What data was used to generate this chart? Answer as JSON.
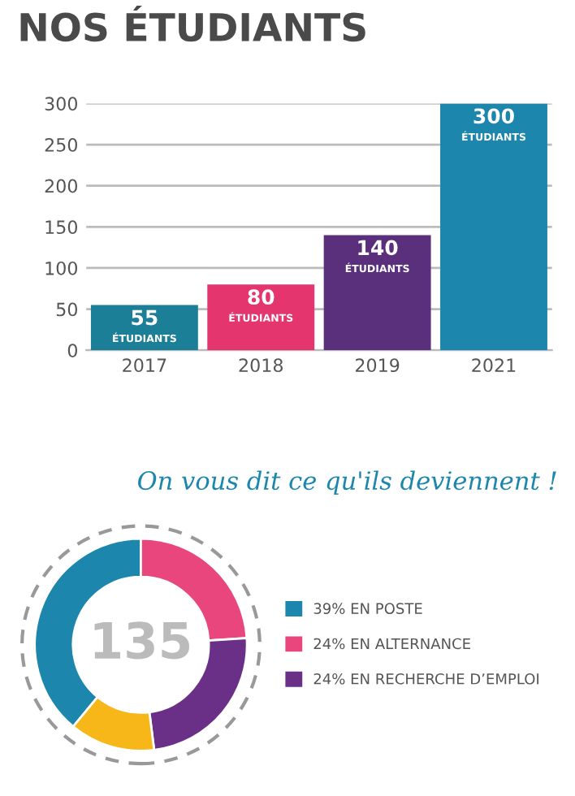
{
  "chart_data": [
    {
      "type": "bar",
      "title": "NOS ÉTUDIANTS",
      "categories": [
        "2017",
        "2018",
        "2019",
        "2021"
      ],
      "values": [
        55,
        80,
        140,
        300
      ],
      "colors": [
        "#1b7f98",
        "#e5356f",
        "#5a2f7c",
        "#1c86ac"
      ],
      "value_labels": [
        "55\nÉTUDIANTS",
        "80\nÉTUDIANTS",
        "140\nÉTUDIANTS",
        "300\nÉTUDIANTS"
      ],
      "ylim": [
        0,
        300
      ],
      "yticks": [
        0,
        50,
        100,
        150,
        200,
        250,
        300
      ],
      "grid": "y"
    },
    {
      "type": "donut",
      "title": "On vous dit ce qu'ils deviennent !",
      "categories": [
        "39% EN POSTE",
        "24% EN ALTERNANCE",
        "24% EN RECHERCHE D’EMPLOI",
        null
      ],
      "values": [
        39,
        24,
        24,
        13
      ],
      "colors": [
        "#1c86ac",
        "#e8467c",
        "#6a2f86",
        "#f7b718"
      ],
      "annotations": [
        "135"
      ],
      "legend": "right"
    }
  ]
}
